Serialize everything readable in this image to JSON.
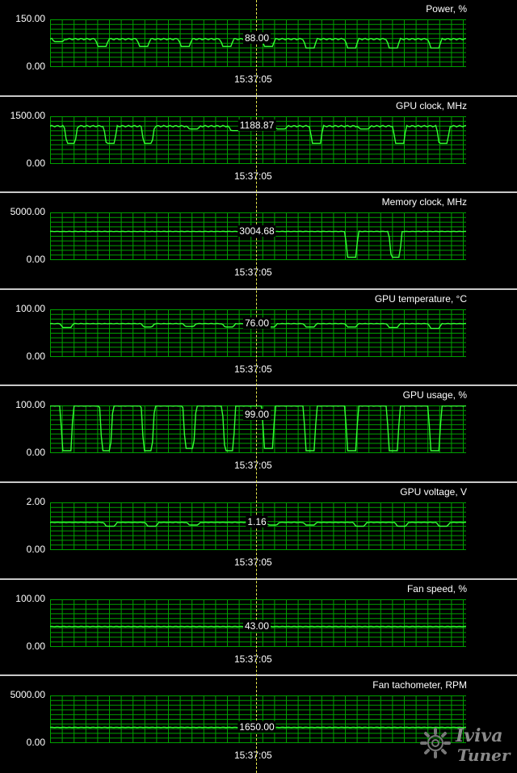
{
  "timestamp": "15:37:05",
  "colors": {
    "grid": "#00a000",
    "line": "#33ff33",
    "cursor": "#e6e64b",
    "separator": "#c8c8c8"
  },
  "watermark": {
    "line1": "Iviva",
    "line2": "Tuner"
  },
  "panels": [
    {
      "title": "Power, %",
      "ymax": "150.00",
      "ymin": "0.00",
      "current": "88.00",
      "range": [
        0,
        150
      ],
      "base": 88,
      "dips": [
        [
          20,
          80
        ],
        [
          125,
          65
        ],
        [
          225,
          65
        ],
        [
          325,
          65
        ],
        [
          425,
          65
        ],
        [
          525,
          65
        ],
        [
          625,
          60
        ],
        [
          725,
          60
        ],
        [
          825,
          60
        ],
        [
          925,
          60
        ]
      ]
    },
    {
      "title": "GPU clock, MHz",
      "ymax": "1500.00",
      "ymin": "0.00",
      "current": "1188.87",
      "range": [
        0,
        1500
      ],
      "base": 1190,
      "dips": [
        [
          50,
          650
        ],
        [
          145,
          650
        ],
        [
          235,
          650
        ],
        [
          345,
          1100
        ],
        [
          445,
          1050
        ],
        [
          555,
          1100
        ],
        [
          640,
          650
        ],
        [
          755,
          1100
        ],
        [
          840,
          650
        ],
        [
          945,
          650
        ]
      ]
    },
    {
      "title": "Memory clock, MHz",
      "ymax": "5000.00",
      "ymin": "0.00",
      "current": "3004.68",
      "range": [
        0,
        5000
      ],
      "base": 3005,
      "dips": [
        [
          725,
          300
        ],
        [
          830,
          300
        ]
      ]
    },
    {
      "title": "GPU temperature, °C",
      "ymax": "100.00",
      "ymin": "0.00",
      "current": "76.00",
      "range": [
        0,
        100
      ],
      "base": 70,
      "dips": [
        [
          40,
          62
        ],
        [
          235,
          63
        ],
        [
          335,
          64
        ],
        [
          430,
          63
        ],
        [
          530,
          63
        ],
        [
          625,
          63
        ],
        [
          725,
          63
        ],
        [
          825,
          62
        ],
        [
          925,
          60
        ]
      ]
    },
    {
      "title": "GPU usage, %",
      "ymax": "100.00",
      "ymin": "0.00",
      "current": "99.00",
      "range": [
        0,
        100
      ],
      "base": 99,
      "dips": [
        [
          40,
          5
        ],
        [
          135,
          5
        ],
        [
          235,
          5
        ],
        [
          335,
          10
        ],
        [
          430,
          5
        ],
        [
          525,
          10
        ],
        [
          625,
          5
        ],
        [
          725,
          5
        ],
        [
          825,
          5
        ],
        [
          925,
          5
        ]
      ]
    },
    {
      "title": "GPU voltage, V",
      "ymax": "2.00",
      "ymin": "0.00",
      "current": "1.16",
      "range": [
        0,
        2
      ],
      "base": 1.16,
      "dips": [
        [
          145,
          1.0
        ],
        [
          245,
          1.0
        ],
        [
          345,
          1.05
        ],
        [
          535,
          1.05
        ],
        [
          625,
          1.05
        ],
        [
          745,
          1.0
        ],
        [
          845,
          1.0
        ],
        [
          945,
          1.0
        ]
      ]
    },
    {
      "title": "Fan speed, %",
      "ymax": "100.00",
      "ymin": "0.00",
      "current": "43.00",
      "range": [
        0,
        100
      ],
      "base": 43,
      "dips": []
    },
    {
      "title": "Fan tachometer, RPM",
      "ymax": "5000.00",
      "ymin": "0.00",
      "current": "1650.00",
      "range": [
        0,
        5000
      ],
      "base": 1650,
      "dips": []
    }
  ]
}
